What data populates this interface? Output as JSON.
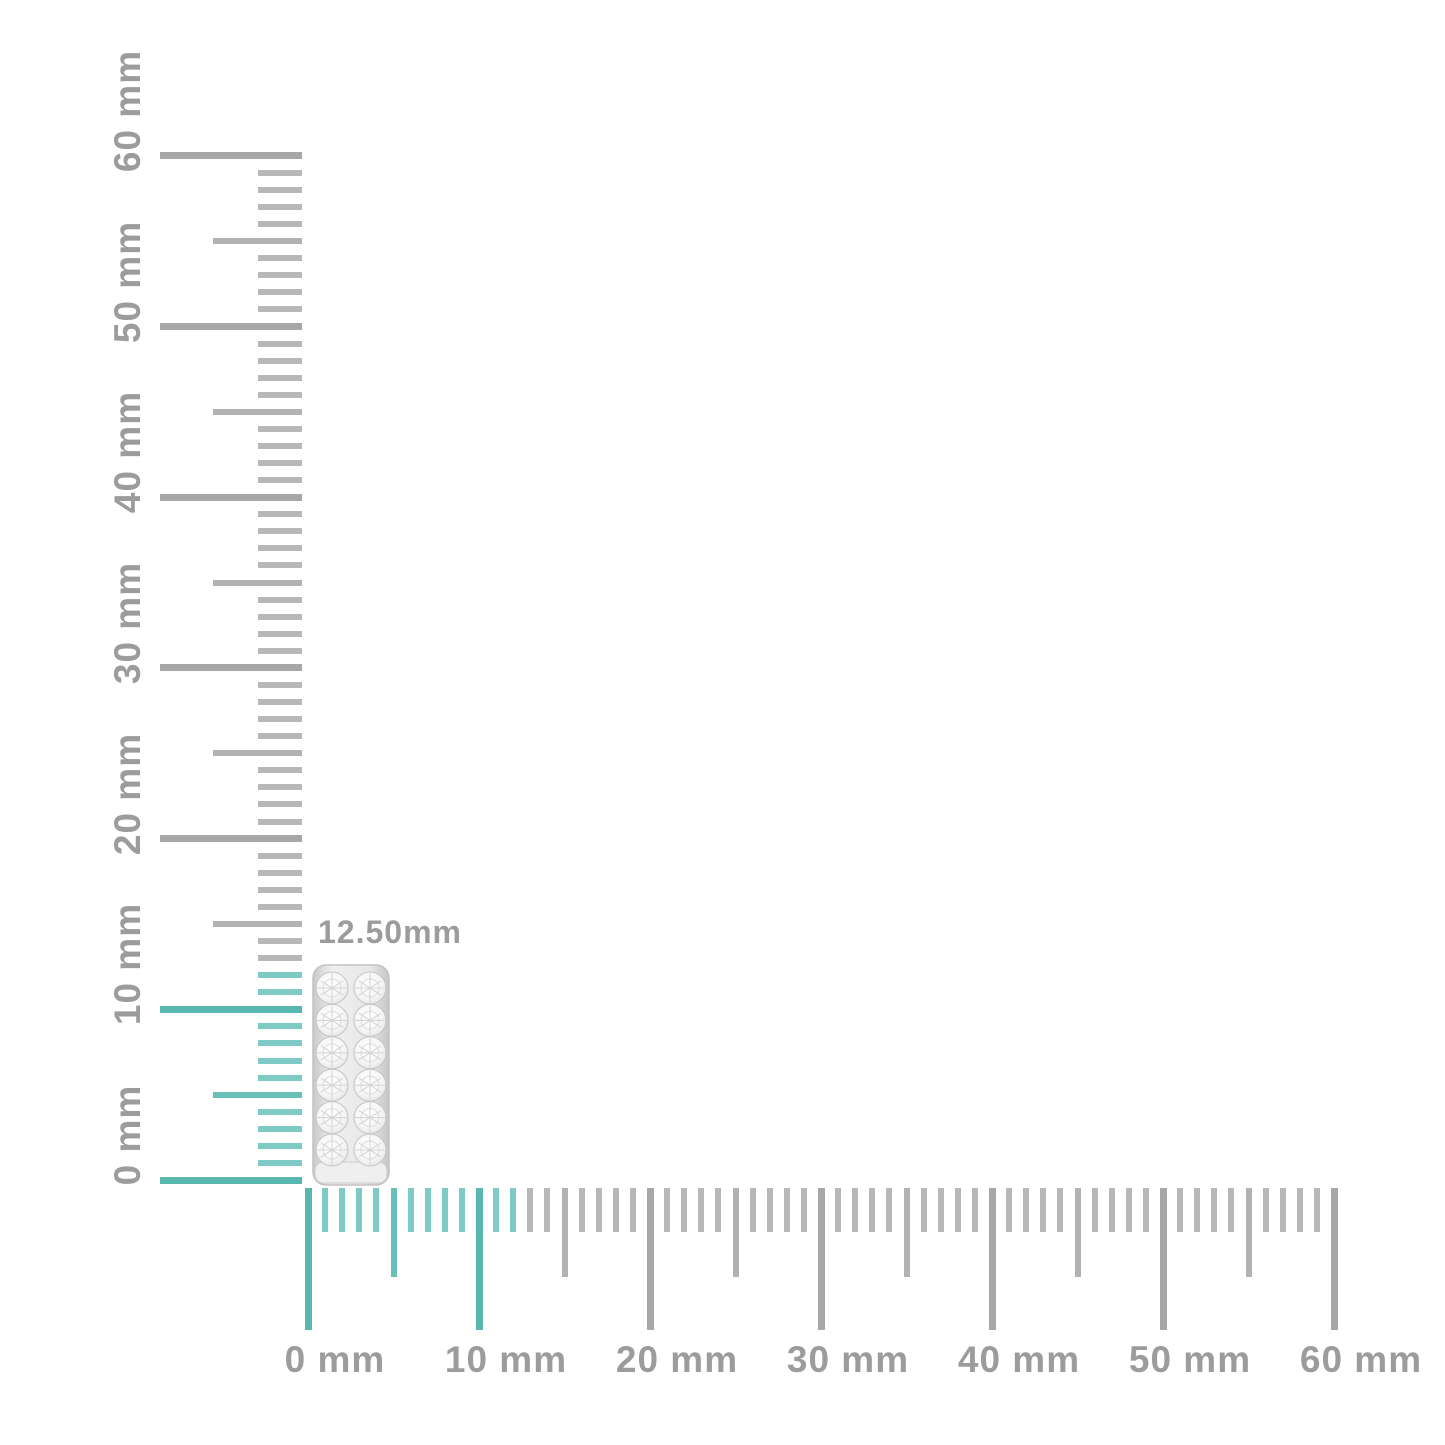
{
  "annotation": {
    "text": "12.50mm"
  },
  "rulers": {
    "unit": "mm",
    "min_mm": 0,
    "max_mm": 60,
    "minor_step_mm": 1,
    "medium_step_mm": 5,
    "label_step_mm": 10,
    "highlight_to_mm": 12.5,
    "vertical_labels": [
      "0 mm",
      "10 mm",
      "20 mm",
      "30 mm",
      "40 mm",
      "50 mm",
      "60 mm"
    ],
    "horizontal_labels": [
      "0 mm",
      "10 mm",
      "20 mm",
      "30 mm",
      "40 mm",
      "50 mm",
      "60 mm"
    ]
  },
  "colors": {
    "highlight_teal_major": "#58b7af",
    "highlight_teal_medium": "#68c0b9",
    "highlight_teal_minor": "#7ecbc5",
    "tick_gray_major": "#a7a7a7",
    "tick_gray_medium": "#b2b2b2",
    "tick_gray_minor": "#b7b7b7",
    "label_gray": "#9c9c9c",
    "metal_silver": "#d9d9d9"
  },
  "product": {
    "name": "double-row pave diamond huggie earring",
    "measured_height": "12.50mm",
    "diamond_rows": 6,
    "diamond_columns": 2
  }
}
